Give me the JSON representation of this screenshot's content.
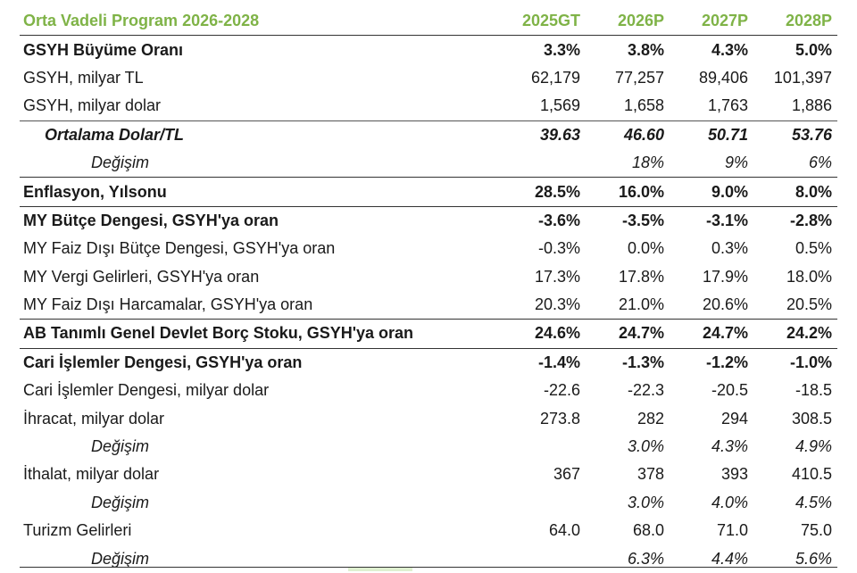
{
  "header": {
    "title": "Orta Vadeli Program 2026-2028",
    "columns": [
      "2025GT",
      "2026P",
      "2027P",
      "2028P"
    ]
  },
  "rows": [
    {
      "label": "GSYH Büyüme Oranı",
      "values": [
        "3.3%",
        "3.8%",
        "4.3%",
        "5.0%"
      ]
    },
    {
      "label": "GSYH, milyar TL",
      "values": [
        "62,179",
        "77,257",
        "89,406",
        "101,397"
      ]
    },
    {
      "label": "GSYH, milyar dolar",
      "values": [
        "1,569",
        "1,658",
        "1,763",
        "1,886"
      ]
    },
    {
      "label": "Ortalama Dolar/TL",
      "values": [
        "39.63",
        "46.60",
        "50.71",
        "53.76"
      ]
    },
    {
      "label": "Değişim",
      "values": [
        "",
        "18%",
        "9%",
        "6%"
      ]
    },
    {
      "label": "Enflasyon, Yılsonu",
      "values": [
        "28.5%",
        "16.0%",
        "9.0%",
        "8.0%"
      ]
    },
    {
      "label": "MY Bütçe Dengesi, GSYH'ya oran",
      "values": [
        "-3.6%",
        "-3.5%",
        "-3.1%",
        "-2.8%"
      ]
    },
    {
      "label": "MY Faiz Dışı Bütçe Dengesi, GSYH'ya oran",
      "values": [
        "-0.3%",
        "0.0%",
        "0.3%",
        "0.5%"
      ]
    },
    {
      "label": "MY Vergi Gelirleri, GSYH'ya oran",
      "values": [
        "17.3%",
        "17.8%",
        "17.9%",
        "18.0%"
      ]
    },
    {
      "label": "MY Faiz Dışı Harcamalar, GSYH'ya oran",
      "values": [
        "20.3%",
        "21.0%",
        "20.6%",
        "20.5%"
      ]
    },
    {
      "label": "AB Tanımlı Genel Devlet Borç Stoku, GSYH'ya oran",
      "values": [
        "24.6%",
        "24.7%",
        "24.7%",
        "24.2%"
      ]
    },
    {
      "label": "Cari İşlemler Dengesi, GSYH'ya oran",
      "values": [
        "-1.4%",
        "-1.3%",
        "-1.2%",
        "-1.0%"
      ]
    },
    {
      "label": "Cari İşlemler Dengesi, milyar dolar",
      "values": [
        "-22.6",
        "-22.3",
        "-20.5",
        "-18.5"
      ]
    },
    {
      "label": "İhracat, milyar dolar",
      "values": [
        "273.8",
        "282",
        "294",
        "308.5"
      ]
    },
    {
      "label": "Değişim",
      "values": [
        "",
        "3.0%",
        "4.3%",
        "4.9%"
      ]
    },
    {
      "label": "İthalat, milyar dolar",
      "values": [
        "367",
        "378",
        "393",
        "410.5"
      ]
    },
    {
      "label": "Değişim",
      "values": [
        "",
        "3.0%",
        "4.0%",
        "4.5%"
      ]
    },
    {
      "label": "Turizm Gelirleri",
      "values": [
        "64.0",
        "68.0",
        "71.0",
        "75.0"
      ]
    },
    {
      "label": "Değişim",
      "values": [
        "",
        "6.3%",
        "4.4%",
        "5.6%"
      ]
    }
  ],
  "colors": {
    "header_text": "#7fb347",
    "rule": "#333333"
  }
}
